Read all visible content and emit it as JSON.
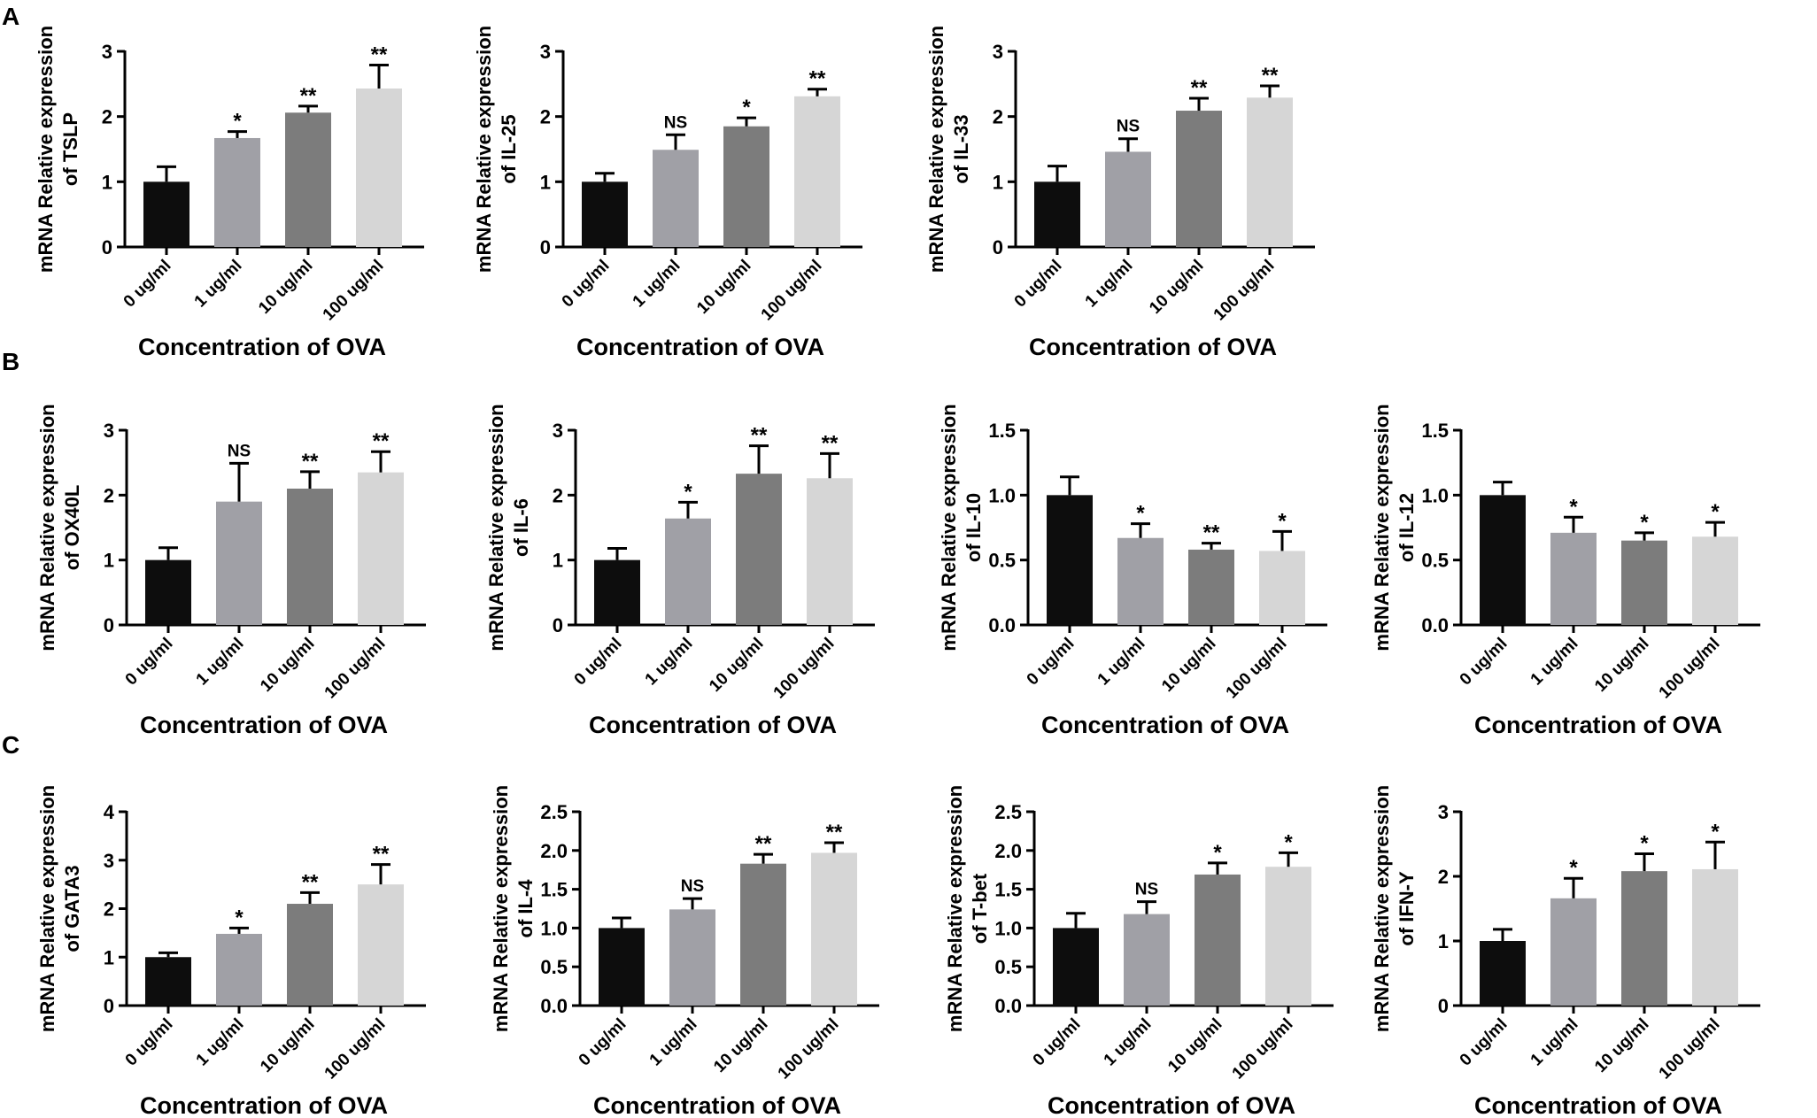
{
  "panels": [
    {
      "letter": "A"
    },
    {
      "letter": "B"
    },
    {
      "letter": "C"
    }
  ],
  "colors": [
    "#0d0d0d",
    "#a0a0a6",
    "#7c7c7c",
    "#d6d6d6"
  ],
  "chart_data": [
    {
      "type": "bar",
      "panel": "A",
      "title": "",
      "categories": [
        "0 ug/ml",
        "1 ug/ml",
        "10 ug/ml",
        "100 ug/ml"
      ],
      "values": [
        1.0,
        1.67,
        2.06,
        2.43
      ],
      "errors": [
        0.23,
        0.1,
        0.1,
        0.36
      ],
      "significance": [
        "",
        "*",
        "**",
        "**"
      ],
      "ylabel_lines": [
        "mRNA Relative expression",
        "of TSLP"
      ],
      "xlabel": "Concentration of OVA",
      "ylim": [
        0,
        3
      ],
      "yticks": [
        "0",
        "1",
        "2",
        "3"
      ]
    },
    {
      "type": "bar",
      "panel": "A",
      "title": "",
      "categories": [
        "0 ug/ml",
        "1 ug/ml",
        "10 ug/ml",
        "100 ug/ml"
      ],
      "values": [
        1.0,
        1.49,
        1.85,
        2.31
      ],
      "errors": [
        0.13,
        0.23,
        0.13,
        0.11
      ],
      "significance": [
        "",
        "NS",
        "*",
        "**"
      ],
      "ylabel_lines": [
        "mRNA Relative expression",
        "of IL-25"
      ],
      "xlabel": "Concentration of OVA",
      "ylim": [
        0,
        3
      ],
      "yticks": [
        "0",
        "1",
        "2",
        "3"
      ]
    },
    {
      "type": "bar",
      "panel": "A",
      "title": "",
      "categories": [
        "0 ug/ml",
        "1 ug/ml",
        "10 ug/ml",
        "100 ug/ml"
      ],
      "values": [
        1.0,
        1.46,
        2.09,
        2.29
      ],
      "errors": [
        0.24,
        0.2,
        0.19,
        0.18
      ],
      "significance": [
        "",
        "NS",
        "**",
        "**"
      ],
      "ylabel_lines": [
        "mRNA Relative expression",
        "of IL-33"
      ],
      "xlabel": "Concentration of OVA",
      "ylim": [
        0,
        3
      ],
      "yticks": [
        "0",
        "1",
        "2",
        "3"
      ]
    },
    {
      "type": "bar",
      "panel": "B",
      "title": "",
      "categories": [
        "0 ug/ml",
        "1 ug/ml",
        "10 ug/ml",
        "100 ug/ml"
      ],
      "values": [
        1.0,
        1.9,
        2.1,
        2.35
      ],
      "errors": [
        0.19,
        0.59,
        0.26,
        0.32
      ],
      "significance": [
        "",
        "NS",
        "**",
        "**"
      ],
      "ylabel_lines": [
        "mRNA Relative expression",
        "of OX40L"
      ],
      "xlabel": "Concentration of OVA",
      "ylim": [
        0,
        3
      ],
      "yticks": [
        "0",
        "1",
        "2",
        "3"
      ]
    },
    {
      "type": "bar",
      "panel": "B",
      "title": "",
      "categories": [
        "0 ug/ml",
        "1 ug/ml",
        "10 ug/ml",
        "100 ug/ml"
      ],
      "values": [
        1.0,
        1.64,
        2.33,
        2.26
      ],
      "errors": [
        0.18,
        0.25,
        0.43,
        0.38
      ],
      "significance": [
        "",
        "*",
        "**",
        "**"
      ],
      "ylabel_lines": [
        "mRNA Relative expression",
        "of IL-6"
      ],
      "xlabel": "Concentration of OVA",
      "ylim": [
        0,
        3
      ],
      "yticks": [
        "0",
        "1",
        "2",
        "3"
      ]
    },
    {
      "type": "bar",
      "panel": "B",
      "title": "",
      "categories": [
        "0 ug/ml",
        "1 ug/ml",
        "10 ug/ml",
        "100 ug/ml"
      ],
      "values": [
        1.0,
        0.67,
        0.58,
        0.57
      ],
      "errors": [
        0.14,
        0.11,
        0.05,
        0.15
      ],
      "significance": [
        "",
        "*",
        "**",
        "*"
      ],
      "ylabel_lines": [
        "mRNA Relative expression",
        "of IL-10"
      ],
      "xlabel": "Concentration of OVA",
      "ylim": [
        0,
        1.5
      ],
      "yticks": [
        "0.0",
        "0.5",
        "1.0",
        "1.5"
      ]
    },
    {
      "type": "bar",
      "panel": "B",
      "title": "",
      "categories": [
        "0 ug/ml",
        "1 ug/ml",
        "10 ug/ml",
        "100 ug/ml"
      ],
      "values": [
        1.0,
        0.71,
        0.65,
        0.68
      ],
      "errors": [
        0.1,
        0.12,
        0.06,
        0.11
      ],
      "significance": [
        "",
        "*",
        "*",
        "*"
      ],
      "ylabel_lines": [
        "mRNA Relative expression",
        "of IL-12"
      ],
      "xlabel": "Concentration of OVA",
      "ylim": [
        0,
        1.5
      ],
      "yticks": [
        "0.0",
        "0.5",
        "1.0",
        "1.5"
      ]
    },
    {
      "type": "bar",
      "panel": "C",
      "title": "",
      "categories": [
        "0 ug/ml",
        "1 ug/ml",
        "10 ug/ml",
        "100 ug/ml"
      ],
      "values": [
        1.0,
        1.48,
        2.1,
        2.5
      ],
      "errors": [
        0.09,
        0.12,
        0.23,
        0.41
      ],
      "significance": [
        "",
        "*",
        "**",
        "**"
      ],
      "ylabel_lines": [
        "mRNA Relative expression",
        "of GATA3"
      ],
      "xlabel": "Concentration of OVA",
      "ylim": [
        0,
        4
      ],
      "yticks": [
        "0",
        "1",
        "2",
        "3",
        "4"
      ]
    },
    {
      "type": "bar",
      "panel": "C",
      "title": "",
      "categories": [
        "0 ug/ml",
        "1 ug/ml",
        "10 ug/ml",
        "100 ug/ml"
      ],
      "values": [
        1.0,
        1.24,
        1.83,
        1.97
      ],
      "errors": [
        0.13,
        0.14,
        0.12,
        0.13
      ],
      "significance": [
        "",
        "NS",
        "**",
        "**"
      ],
      "ylabel_lines": [
        "mRNA Relative expression",
        "of IL-4"
      ],
      "xlabel": "Concentration of OVA",
      "ylim": [
        0,
        2.5
      ],
      "yticks": [
        "0.0",
        "0.5",
        "1.0",
        "1.5",
        "2.0",
        "2.5"
      ]
    },
    {
      "type": "bar",
      "panel": "C",
      "title": "",
      "categories": [
        "0 ug/ml",
        "1 ug/ml",
        "10 ug/ml",
        "100 ug/ml"
      ],
      "values": [
        1.0,
        1.18,
        1.69,
        1.79
      ],
      "errors": [
        0.19,
        0.16,
        0.15,
        0.18
      ],
      "significance": [
        "",
        "NS",
        "*",
        "*"
      ],
      "ylabel_lines": [
        "mRNA Relative expression",
        "of T-bet"
      ],
      "xlabel": "Concentration of OVA",
      "ylim": [
        0,
        2.5
      ],
      "yticks": [
        "0.0",
        "0.5",
        "1.0",
        "1.5",
        "2.0",
        "2.5"
      ]
    },
    {
      "type": "bar",
      "panel": "C",
      "title": "",
      "categories": [
        "0 ug/ml",
        "1 ug/ml",
        "10 ug/ml",
        "100 ug/ml"
      ],
      "values": [
        1.0,
        1.66,
        2.08,
        2.11
      ],
      "errors": [
        0.18,
        0.31,
        0.27,
        0.42
      ],
      "significance": [
        "",
        "*",
        "*",
        "*"
      ],
      "ylabel_lines": [
        "mRNA Relative expression",
        "of IFN-Y"
      ],
      "xlabel": "Concentration of OVA",
      "ylim": [
        0,
        3
      ],
      "yticks": [
        "0",
        "1",
        "2",
        "3"
      ]
    }
  ]
}
